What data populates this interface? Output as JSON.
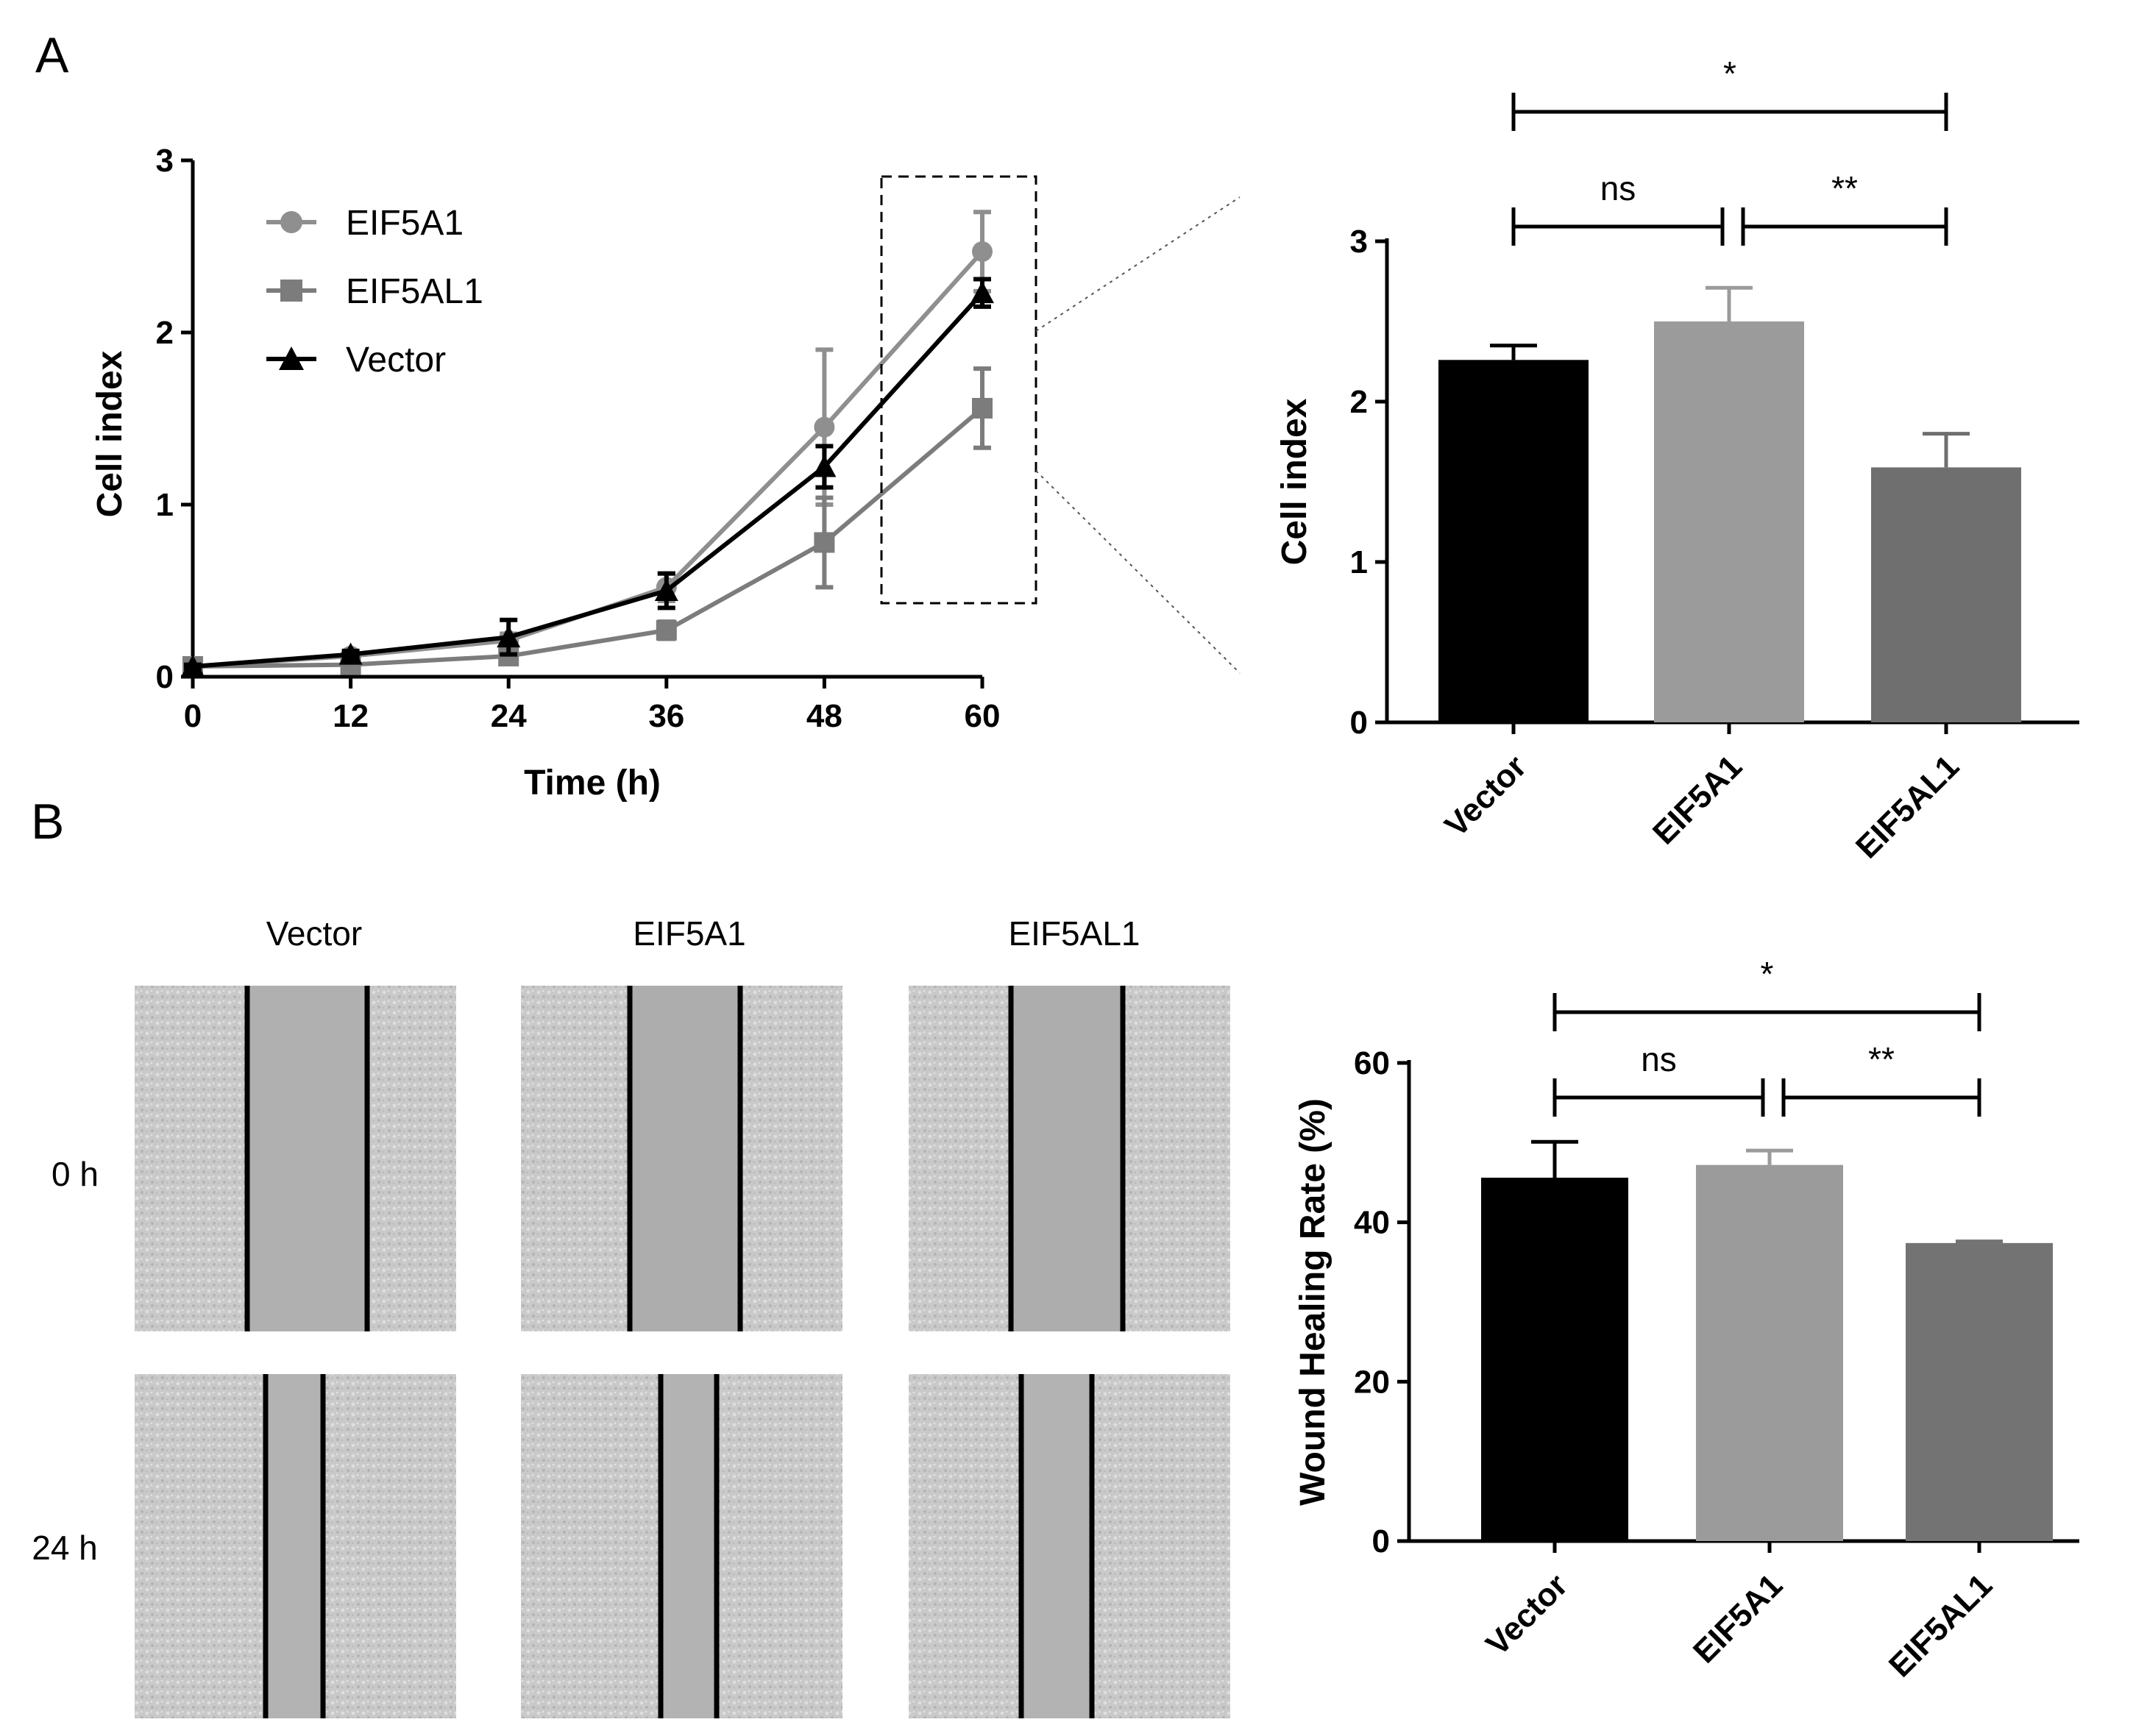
{
  "panels": {
    "a_label": "A",
    "b_label": "B"
  },
  "chart_data": [
    {
      "id": "growth",
      "type": "line",
      "title": "",
      "xlabel": "Time (h)",
      "ylabel": "Cell index",
      "x": [
        0,
        12,
        24,
        36,
        48,
        60
      ],
      "xticks": [
        "0",
        "12",
        "24",
        "36",
        "48",
        "60"
      ],
      "yticks": [
        "0",
        "1",
        "2",
        "3"
      ],
      "xlim": [
        0,
        60
      ],
      "ylim": [
        0,
        3
      ],
      "legend_position": "top-left",
      "series": [
        {
          "name": "EIF5A1",
          "marker": "circle",
          "color": "#8f8f8f",
          "values": [
            0.06,
            0.12,
            0.21,
            0.52,
            1.45,
            2.47
          ],
          "errors": [
            0.01,
            0.02,
            0.04,
            0.08,
            0.45,
            0.23
          ]
        },
        {
          "name": "EIF5AL1",
          "marker": "square",
          "color": "#7c7c7c",
          "values": [
            0.06,
            0.07,
            0.12,
            0.27,
            0.78,
            1.56
          ],
          "errors": [
            0.01,
            0.02,
            0.03,
            0.05,
            0.26,
            0.23
          ]
        },
        {
          "name": "Vector",
          "marker": "triangle",
          "color": "#000000",
          "values": [
            0.06,
            0.13,
            0.23,
            0.5,
            1.22,
            2.23
          ],
          "errors": [
            0.01,
            0.02,
            0.1,
            0.1,
            0.12,
            0.08
          ]
        }
      ]
    },
    {
      "id": "bar60",
      "type": "bar",
      "title": "",
      "xlabel": "",
      "ylabel": "Cell index",
      "categories": [
        "Vector",
        "EIF5A1",
        "EIF5AL1"
      ],
      "values": [
        2.26,
        2.5,
        1.59
      ],
      "errors": [
        0.09,
        0.21,
        0.21
      ],
      "colors": [
        "#000000",
        "#9b9b9b",
        "#6f6f6f"
      ],
      "yticks": [
        "0",
        "1",
        "2",
        "3"
      ],
      "ylim": [
        0,
        3
      ],
      "significance": [
        {
          "from": 0,
          "to": 2,
          "label": "*"
        },
        {
          "from": 0,
          "to": 1,
          "label": "ns"
        },
        {
          "from": 1,
          "to": 2,
          "label": "**"
        }
      ]
    },
    {
      "id": "wound",
      "type": "bar",
      "title": "",
      "xlabel": "",
      "ylabel": "Wound Healing Rate (%)",
      "categories": [
        "Vector",
        "EIF5A1",
        "EIF5AL1"
      ],
      "values": [
        45.6,
        47.2,
        37.4
      ],
      "errors": [
        4.5,
        1.8,
        0.2
      ],
      "colors": [
        "#000000",
        "#9b9b9b",
        "#737373"
      ],
      "yticks": [
        "0",
        "20",
        "40",
        "60"
      ],
      "ylim": [
        0,
        60
      ],
      "significance": [
        {
          "from": 0,
          "to": 2,
          "label": "*"
        },
        {
          "from": 0,
          "to": 1,
          "label": "ns"
        },
        {
          "from": 1,
          "to": 2,
          "label": "**"
        }
      ]
    }
  ],
  "wound_images": {
    "columns": [
      "Vector",
      "EIF5A1",
      "EIF5AL1"
    ],
    "rows": [
      "0 h",
      "24 h"
    ]
  }
}
